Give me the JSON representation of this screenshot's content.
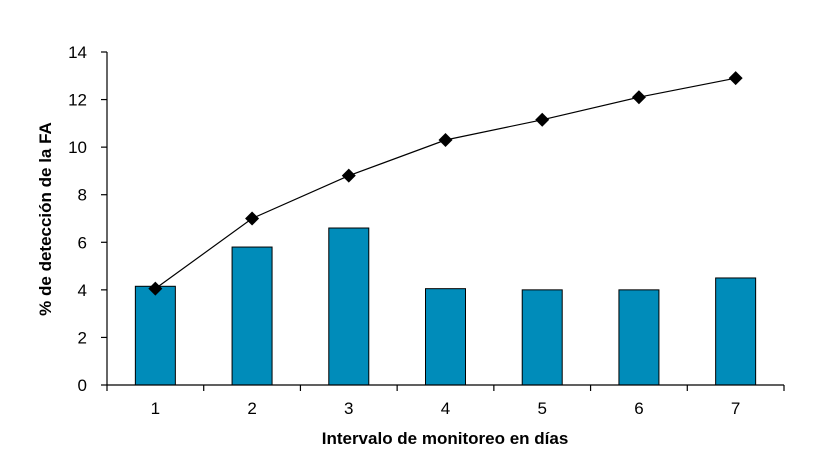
{
  "chart_data": {
    "type": "bar",
    "categories": [
      "1",
      "2",
      "3",
      "4",
      "5",
      "6",
      "7"
    ],
    "series": [
      {
        "type": "bar",
        "values": [
          4.15,
          5.8,
          6.6,
          4.05,
          4.0,
          4.0,
          4.5
        ]
      },
      {
        "type": "line",
        "marker": "diamond",
        "values": [
          4.05,
          7.0,
          8.8,
          10.3,
          11.15,
          12.1,
          12.9
        ]
      }
    ],
    "xlabel": "Intervalo de monitoreo en días",
    "ylabel": "% de detección de la FA",
    "ylim": [
      0,
      14
    ],
    "yticks": [
      0,
      2,
      4,
      6,
      8,
      10,
      12,
      14
    ],
    "grid": false,
    "legend": "none",
    "colors": {
      "bar": "#008cba",
      "bar_outline": "#000000",
      "line": "#000000",
      "marker": "#000000"
    }
  }
}
